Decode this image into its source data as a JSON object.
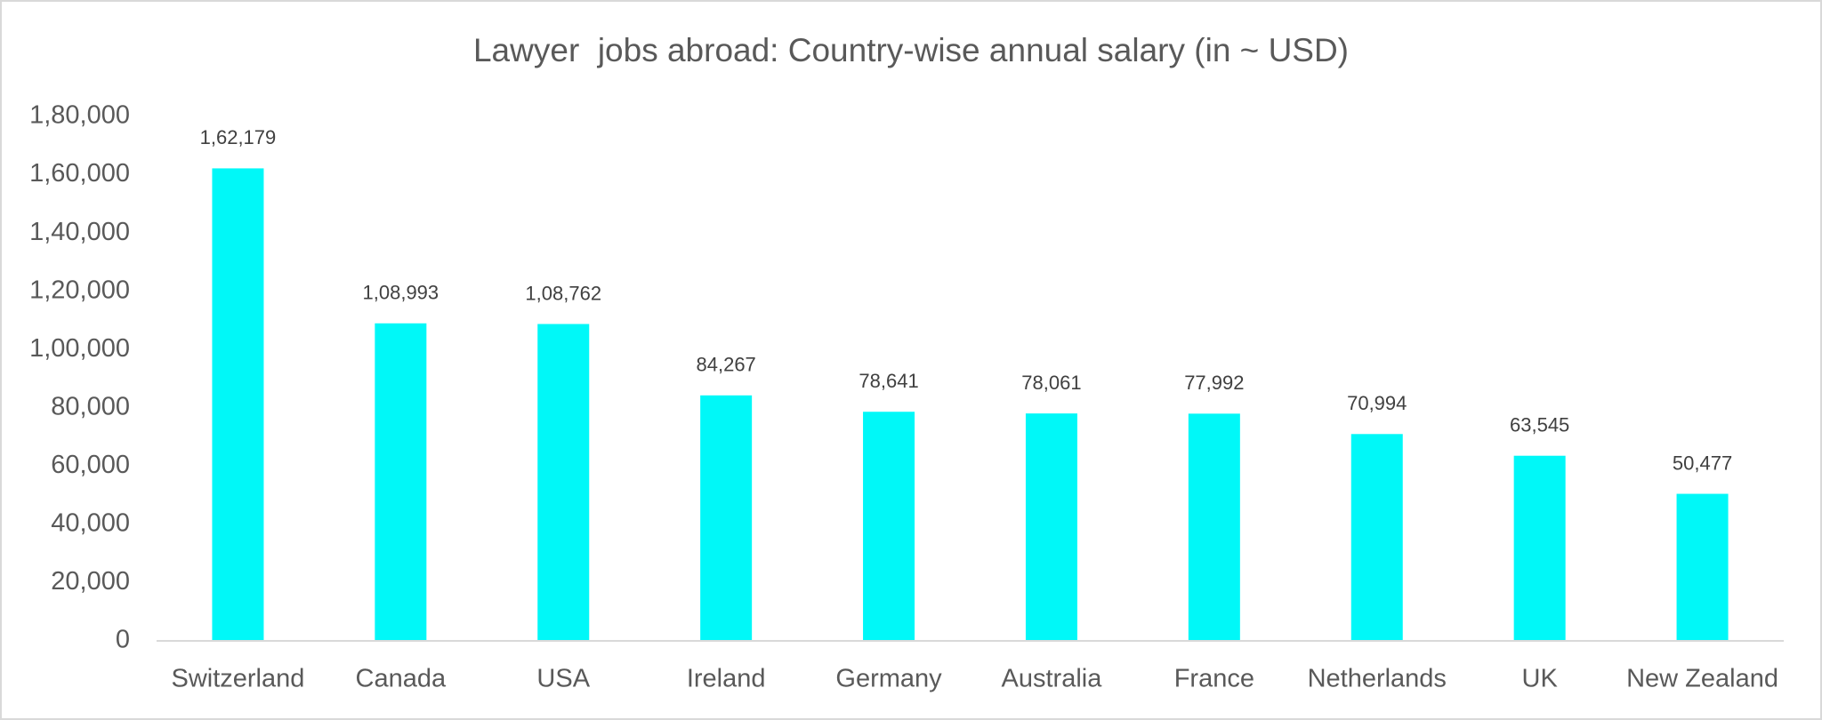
{
  "chart_data": {
    "type": "bar",
    "title": "Lawyer  jobs abroad: Country-wise annual salary (in ~ USD)",
    "categories": [
      "Switzerland",
      "Canada",
      "USA",
      "Ireland",
      "Germany",
      "Australia",
      "France",
      "Netherlands",
      "UK",
      "New Zealand"
    ],
    "values": [
      162179,
      108993,
      108762,
      84267,
      78641,
      78061,
      77992,
      70994,
      63545,
      50477
    ],
    "value_labels": [
      "1,62,179",
      "1,08,993",
      "1,08,762",
      "84,267",
      "78,641",
      "78,061",
      "77,992",
      "70,994",
      "63,545",
      "50,477"
    ],
    "color": "#00f8f8",
    "ylim": [
      0,
      180000
    ],
    "yticks": [
      0,
      {
        "value": 20000,
        "label": "20,000"
      },
      {
        "value": 40000,
        "label": "40,000"
      },
      {
        "value": 60000,
        "label": "60,000"
      },
      {
        "value": 80000,
        "label": "80,000"
      },
      {
        "value": 100000,
        "label": "1,00,000"
      },
      {
        "value": 120000,
        "label": "1,20,000"
      },
      {
        "value": 140000,
        "label": "1,40,000"
      },
      {
        "value": 160000,
        "label": "1,60,000"
      },
      {
        "value": 180000,
        "label": "1,80,000"
      }
    ],
    "grid": false
  }
}
